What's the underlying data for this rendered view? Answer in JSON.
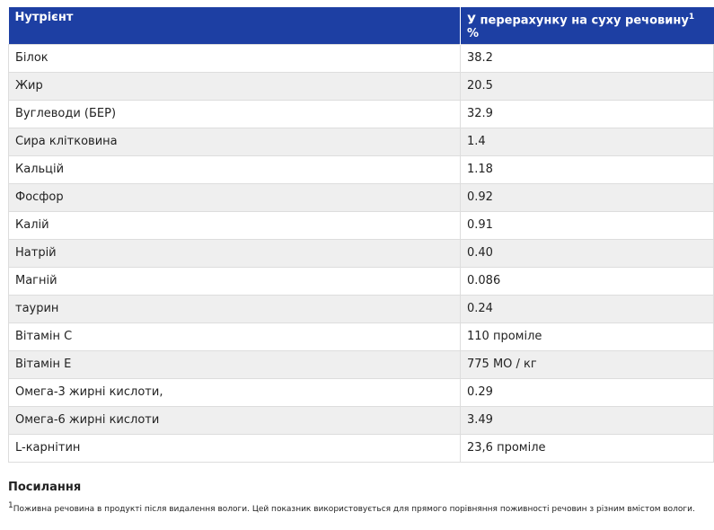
{
  "table": {
    "header": {
      "nutrient": "Нутрієнт",
      "dry_matter": "У перерахунку на суху речовину",
      "dry_matter_sup": "1",
      "dry_matter_unit": "%"
    },
    "rows": [
      [
        "Білок",
        "38.2"
      ],
      [
        "Жир",
        "20.5"
      ],
      [
        "Вуглеводи (БЕР)",
        "32.9"
      ],
      [
        "Сира клітковина",
        "1.4"
      ],
      [
        "Кальцій",
        "1.18"
      ],
      [
        "Фосфор",
        "0.92"
      ],
      [
        "Калій",
        "0.91"
      ],
      [
        "Натрій",
        "0.40"
      ],
      [
        "Магній",
        "0.086"
      ],
      [
        "таурин",
        "0.24"
      ],
      [
        "Вітамін С",
        "110 проміле"
      ],
      [
        "Вітамін Е",
        "775 МО / кг"
      ],
      [
        "Омега-3 жирні кислоти,",
        "0.29"
      ],
      [
        "Омега-6 жирні кислоти",
        "3.49"
      ],
      [
        "L-карнітин",
        "23,6 проміле"
      ]
    ]
  },
  "references": {
    "title": "Посилання",
    "marker": "1",
    "note": "Поживна речовина в продукті після видалення вологи. Цей показник використовується для прямого порівняння поживності речовин з різним вмістом вологи."
  }
}
